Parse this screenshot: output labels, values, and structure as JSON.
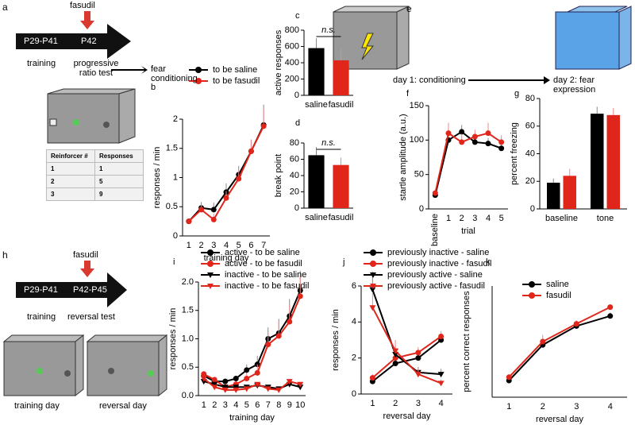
{
  "chart_data": [
    {
      "panel": "b",
      "type": "line",
      "x_label": "training day",
      "y_label": "responses / min",
      "categories": [
        "1",
        "2",
        "3",
        "4",
        "5",
        "6",
        "7"
      ],
      "ylim": [
        0,
        2
      ],
      "yticks": [
        0,
        0.5,
        1,
        1.5,
        2
      ],
      "series": [
        {
          "name": "to be saline",
          "color": "#000000",
          "marker": "circle",
          "values": [
            0.25,
            0.48,
            0.45,
            0.75,
            1.05,
            1.45,
            1.9
          ],
          "errors": [
            0.03,
            0.1,
            0.12,
            0.15,
            0.15,
            0.2,
            0.35
          ]
        },
        {
          "name": "to be fasudil",
          "color": "#e0261b",
          "marker": "circle",
          "values": [
            0.25,
            0.45,
            0.28,
            0.65,
            0.98,
            1.45,
            1.88
          ],
          "errors": [
            0.03,
            0.08,
            0.1,
            0.12,
            0.15,
            0.2,
            0.3
          ]
        }
      ]
    },
    {
      "panel": "c",
      "type": "bar",
      "y_label": "active responses",
      "categories": [
        "saline",
        "fasudil"
      ],
      "values": [
        580,
        430
      ],
      "errors": [
        120,
        140
      ],
      "colors": [
        "#000000",
        "#e0261b"
      ],
      "ylim": [
        0,
        800
      ],
      "yticks": [
        0,
        200,
        400,
        600,
        800
      ],
      "annotation": "n.s."
    },
    {
      "panel": "d",
      "type": "bar",
      "y_label": "break point",
      "categories": [
        "saline",
        "fasudil"
      ],
      "values": [
        65,
        53
      ],
      "errors": [
        10,
        9
      ],
      "colors": [
        "#000000",
        "#e0261b"
      ],
      "ylim": [
        0,
        80
      ],
      "yticks": [
        0,
        20,
        40,
        60,
        80
      ],
      "annotation": "n.s."
    },
    {
      "panel": "f",
      "type": "line",
      "x_label": "trial",
      "y_label": "startle amplitude (a.u.)",
      "categories": [
        "baseline",
        "1",
        "2",
        "3",
        "4",
        "5"
      ],
      "ylim": [
        0,
        150
      ],
      "yticks": [
        0,
        50,
        100,
        150
      ],
      "series": [
        {
          "name": "saline",
          "color": "#000000",
          "marker": "circle",
          "values": [
            20,
            100,
            112,
            97,
            95,
            88
          ],
          "errors": [
            5,
            25,
            10,
            8,
            8,
            8
          ]
        },
        {
          "name": "fasudil",
          "color": "#e0261b",
          "marker": "circle",
          "values": [
            23,
            110,
            97,
            105,
            110,
            97
          ],
          "errors": [
            5,
            15,
            12,
            10,
            15,
            10
          ]
        }
      ]
    },
    {
      "panel": "g",
      "type": "groupbar",
      "y_label": "percent freezing",
      "categories": [
        "baseline",
        "tone"
      ],
      "ylim": [
        0,
        80
      ],
      "yticks": [
        0,
        20,
        40,
        60,
        80
      ],
      "series": [
        {
          "name": "saline",
          "color": "#000000",
          "values": [
            19,
            69
          ],
          "errors": [
            3,
            5
          ]
        },
        {
          "name": "fasudil",
          "color": "#e0261b",
          "values": [
            24,
            68
          ],
          "errors": [
            5,
            5
          ]
        }
      ]
    },
    {
      "panel": "i",
      "type": "line",
      "x_label": "training day",
      "y_label": "responses / min",
      "categories": [
        "1",
        "2",
        "3",
        "4",
        "5",
        "6",
        "7",
        "8",
        "9",
        "10"
      ],
      "ylim": [
        0,
        2
      ],
      "yticks": [
        {
          "value": 0,
          "label": "0.0"
        },
        0.5,
        {
          "value": 1,
          "label": "1.0"
        },
        1.5,
        {
          "value": 2,
          "label": "2.0"
        }
      ],
      "series": [
        {
          "name": "active - to be saline",
          "color": "#000000",
          "marker": "circle",
          "values": [
            0.35,
            0.25,
            0.25,
            0.3,
            0.45,
            0.55,
            1.0,
            1.1,
            1.4,
            1.85
          ],
          "errors": [
            0.05,
            0.05,
            0.05,
            0.05,
            0.1,
            0.15,
            0.2,
            0.25,
            0.3,
            0.35
          ]
        },
        {
          "name": "active - to be fasudil",
          "color": "#e0261b",
          "marker": "circle",
          "values": [
            0.38,
            0.28,
            0.15,
            0.2,
            0.3,
            0.4,
            0.9,
            1.05,
            1.3,
            1.75
          ],
          "errors": [
            0.05,
            0.05,
            0.05,
            0.05,
            0.1,
            0.15,
            0.2,
            0.25,
            0.3,
            0.35
          ]
        },
        {
          "name": "inactive - to be saline",
          "color": "#000000",
          "marker": "triangle",
          "values": [
            0.25,
            0.2,
            0.15,
            0.15,
            0.15,
            0.18,
            0.15,
            0.12,
            0.2,
            0.15
          ]
        },
        {
          "name": "inactive - to be fasudil",
          "color": "#e0261b",
          "marker": "triangle",
          "values": [
            0.3,
            0.15,
            0.1,
            0.1,
            0.12,
            0.2,
            0.12,
            0.1,
            0.25,
            0.2
          ]
        }
      ]
    },
    {
      "panel": "j",
      "type": "line",
      "x_label": "reversal day",
      "y_label": "responses / min",
      "categories": [
        "1",
        "2",
        "3",
        "4"
      ],
      "ylim": [
        0,
        6
      ],
      "yticks": [
        0,
        2,
        4,
        6
      ],
      "series": [
        {
          "name": "previously inactive - saline",
          "color": "#000000",
          "marker": "circle",
          "values": [
            0.7,
            1.7,
            2.0,
            3.0
          ],
          "errors": [
            0.2,
            0.5,
            0.3,
            0.3
          ]
        },
        {
          "name": "previously inactive - fasudil",
          "color": "#e0261b",
          "marker": "circle",
          "values": [
            0.9,
            2.0,
            2.3,
            3.2
          ],
          "errors": [
            0.2,
            0.6,
            0.3,
            0.3
          ]
        },
        {
          "name": "previously active - saline",
          "color": "#000000",
          "marker": "triangle",
          "values": [
            5.8,
            2.2,
            1.2,
            1.1
          ],
          "errors": [
            1,
            0.5,
            0.3,
            0.3
          ]
        },
        {
          "name": "previously active - fasudil",
          "color": "#e0261b",
          "marker": "triangle",
          "values": [
            4.8,
            2.4,
            1.1,
            0.6
          ],
          "errors": [
            0.8,
            0.6,
            0.3,
            0.2
          ]
        }
      ]
    },
    {
      "panel": "k",
      "type": "line",
      "x_label": "reversal day",
      "y_label": "percent correct responses",
      "categories": [
        "1",
        "2",
        "3",
        "4"
      ],
      "ylim": [
        0,
        100
      ],
      "yticks": [],
      "series": [
        {
          "name": "saline",
          "color": "#000000",
          "marker": "circle",
          "values": [
            15,
            47,
            64,
            73
          ],
          "errors": [
            2,
            4,
            3,
            3
          ]
        },
        {
          "name": "fasudil",
          "color": "#e0261b",
          "marker": "circle",
          "values": [
            18,
            50,
            66,
            81
          ],
          "errors": [
            2,
            6,
            3,
            2
          ]
        }
      ]
    }
  ],
  "diagram_a": {
    "panel": "a",
    "drug": "fasudil",
    "ages": [
      "P29-P41",
      "P42"
    ],
    "stages": [
      "training",
      "progressive ratio test",
      "fear conditioning"
    ]
  },
  "table": {
    "header": [
      "Reinforcer #",
      "Responses"
    ],
    "rows": [
      [
        1,
        1
      ],
      [
        2,
        5
      ],
      [
        3,
        9
      ]
    ]
  },
  "diagram_e": {
    "panel": "e",
    "labels": [
      "day 1: conditioning",
      "day 2: fear expression"
    ]
  },
  "diagram_h": {
    "panel": "h",
    "drug": "fasudil",
    "ages": [
      "P29-P41",
      "P42-P45"
    ],
    "stages": [
      "training",
      "reversal test"
    ],
    "cages": [
      "training day",
      "reversal day"
    ]
  }
}
